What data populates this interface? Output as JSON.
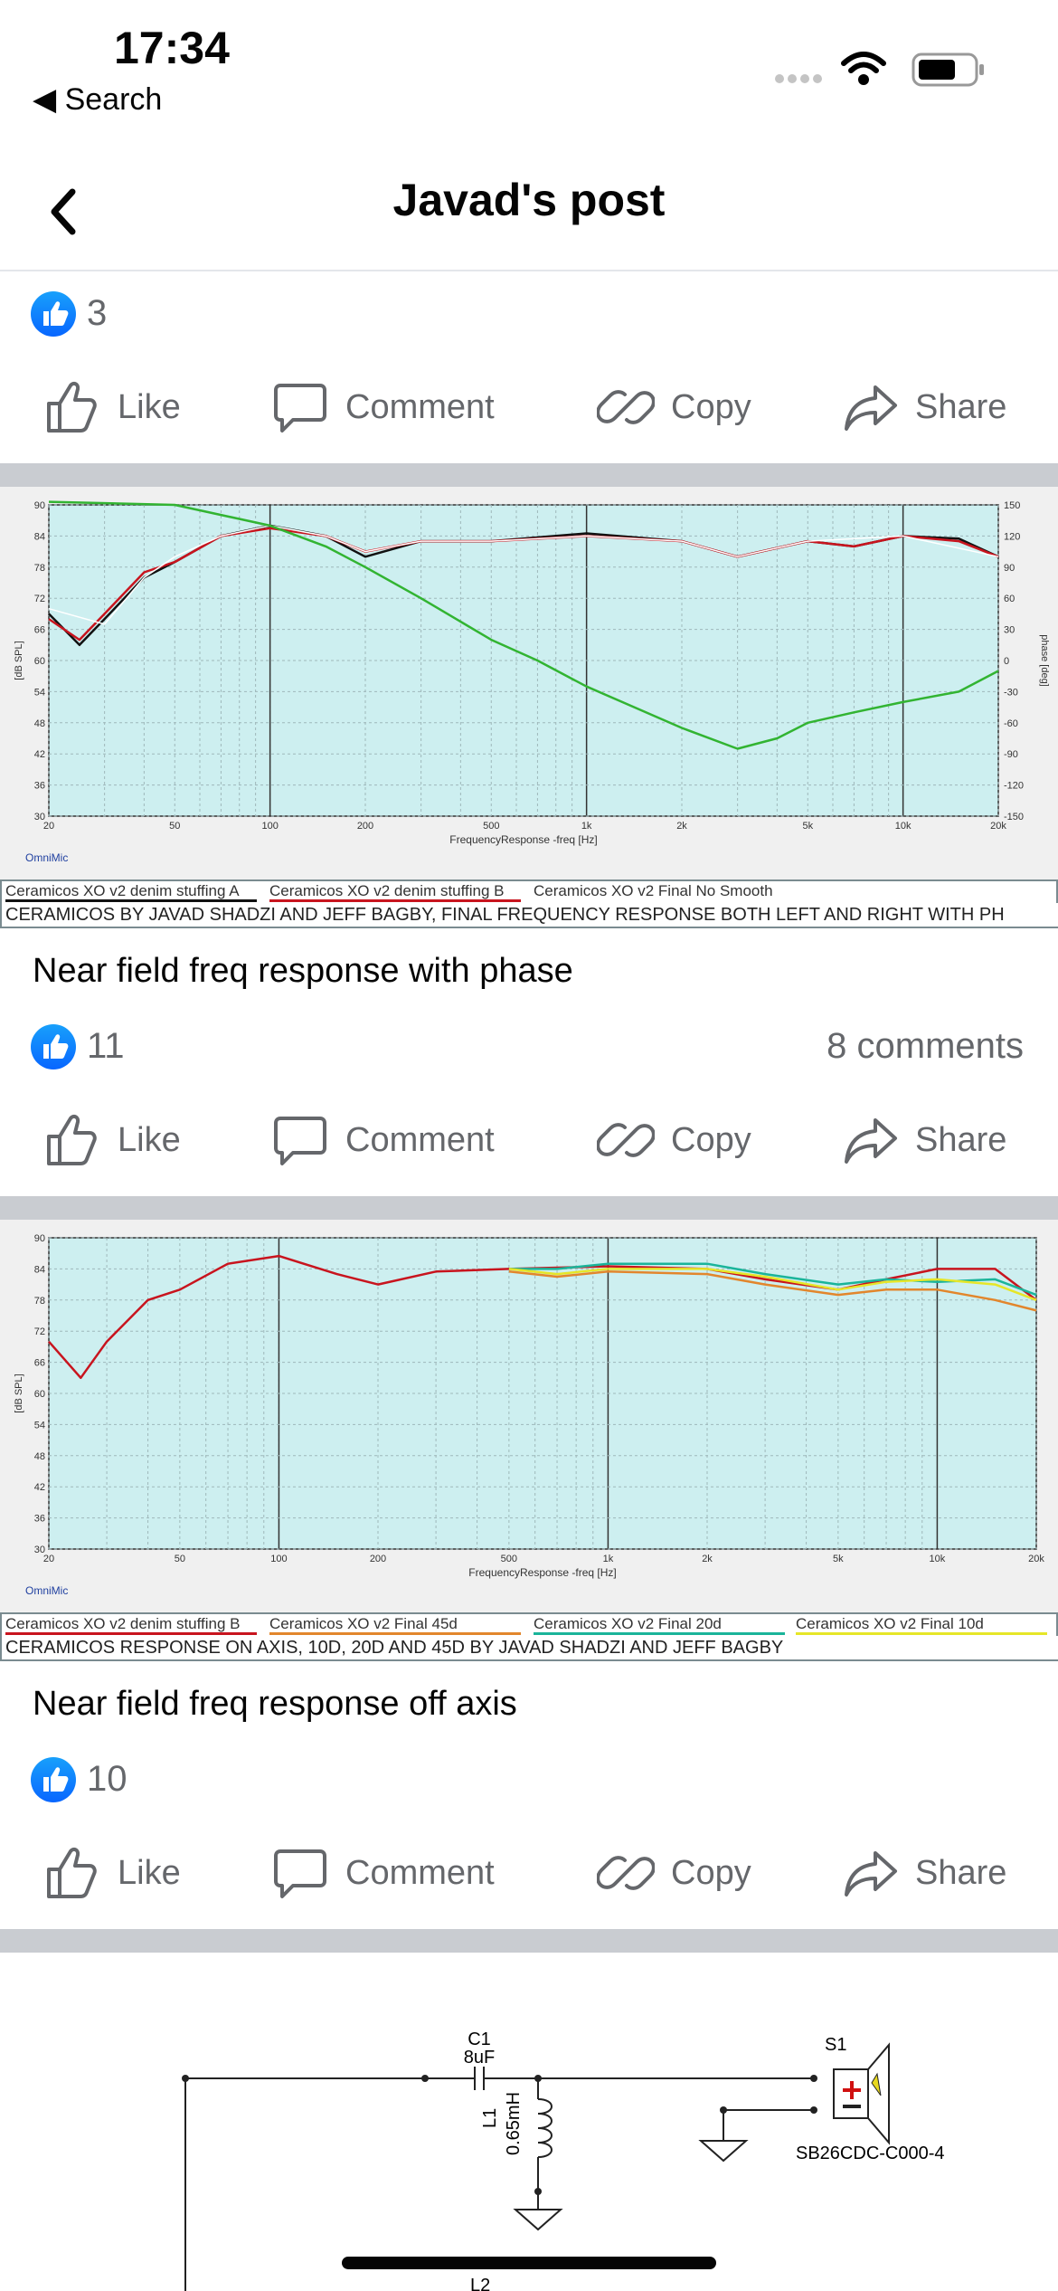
{
  "status": {
    "time": "17:34",
    "back_label": "◀ Search"
  },
  "nav": {
    "title": "Javad's post"
  },
  "actions": {
    "like": "Like",
    "comment": "Comment",
    "copy": "Copy",
    "share": "Share"
  },
  "colors": {
    "accent": "#0866ff",
    "chart_bg": "#cdeff0",
    "green": "#32b432",
    "red": "#c8141e",
    "orange": "#e2862c",
    "teal": "#1ab49a",
    "yellow": "#e6e628"
  },
  "post1": {
    "likes": "3"
  },
  "post2": {
    "caption": "Near field freq response with phase",
    "likes": "11",
    "comments": "8 comments",
    "legend": [
      "Ceramicos XO v2 denim stuffing A",
      "Ceramicos XO v2 denim stuffing B",
      "Ceramicos XO v2 Final No Smooth"
    ],
    "note": "CERAMICOS BY JAVAD SHADZI AND JEFF BAGBY, FINAL FREQUENCY RESPONSE BOTH LEFT AND RIGHT WITH PH"
  },
  "post3": {
    "caption": "Near field freq response off axis",
    "likes": "10",
    "legend": [
      "Ceramicos XO v2 denim stuffing B",
      "Ceramicos XO v2 Final 45d",
      "Ceramicos XO v2 Final 20d",
      "Ceramicos XO v2 Final 10d"
    ],
    "note": "CERAMICOS RESPONSE ON AXIS, 10D, 20D AND 45D BY JAVAD SHADZI AND JEFF BAGBY"
  },
  "schematic": {
    "c1": "C1",
    "c1_val": "8uF",
    "l1": "L1",
    "l1_val": "0.65mH",
    "s1": "S1",
    "s1_part": "SB26CDC-C000-4",
    "l2_partial": "L2"
  },
  "chart_data": [
    {
      "type": "line",
      "xlabel": "FrequencyResponse -freq [Hz]",
      "ylabel": "[dB SPL]",
      "y2label": "phase [deg]",
      "brand": "OmniMic",
      "x_log": true,
      "xlim": [
        20,
        20000
      ],
      "ylim": [
        30,
        90
      ],
      "y2lim": [
        -150,
        150
      ],
      "x_ticks": [
        "20",
        "50",
        "100",
        "200",
        "500",
        "1k",
        "2k",
        "5k",
        "10k",
        "20k"
      ],
      "y_ticks": [
        "30",
        "36",
        "42",
        "48",
        "54",
        "60",
        "66",
        "72",
        "78",
        "84",
        "90"
      ],
      "y2_ticks": [
        "-150",
        "-120",
        "-90",
        "-60",
        "-30",
        "0",
        "30",
        "60",
        "90",
        "120",
        "150"
      ],
      "series": [
        {
          "name": "Ceramicos XO v2 denim stuffing A",
          "color": "#111111",
          "x": [
            20,
            25,
            30,
            40,
            50,
            70,
            100,
            150,
            200,
            300,
            500,
            1000,
            2000,
            3000,
            5000,
            7000,
            10000,
            15000,
            20000
          ],
          "y": [
            69,
            63,
            68,
            76,
            79,
            84,
            86,
            84,
            80,
            83,
            83,
            84.5,
            83,
            80,
            83,
            82,
            84,
            83.5,
            80
          ]
        },
        {
          "name": "Ceramicos XO v2 denim stuffing B",
          "color": "#c8141e",
          "x": [
            20,
            25,
            30,
            40,
            50,
            70,
            100,
            150,
            200,
            300,
            500,
            1000,
            2000,
            3000,
            5000,
            7000,
            10000,
            15000,
            20000
          ],
          "y": [
            68,
            64,
            69,
            77,
            79,
            84,
            85.5,
            84,
            81,
            83,
            83,
            84,
            83,
            80,
            83,
            82,
            84,
            83,
            80
          ]
        },
        {
          "name": "Ceramicos XO v2 Final No Smooth",
          "color": "#ffffff",
          "x": [
            20,
            30,
            40,
            50,
            70,
            100,
            150,
            200,
            300,
            500,
            1000,
            2000,
            3000,
            5000,
            10000,
            20000
          ],
          "y": [
            70,
            67,
            76,
            80,
            84,
            86,
            84,
            81,
            83,
            83,
            84,
            83,
            80,
            83,
            84,
            80
          ]
        },
        {
          "axis": "y2",
          "color": "#32b432",
          "x": [
            20,
            50,
            100,
            150,
            200,
            300,
            500,
            700,
            1000,
            2000,
            3000,
            4000,
            5000,
            7000,
            10000,
            15000,
            20000
          ],
          "y": [
            153,
            150,
            130,
            110,
            90,
            60,
            20,
            0,
            -25,
            -65,
            -85,
            -75,
            -60,
            -50,
            -40,
            -30,
            -10
          ]
        }
      ]
    },
    {
      "type": "line",
      "xlabel": "FrequencyResponse -freq [Hz]",
      "ylabel": "[dB SPL]",
      "brand": "OmniMic",
      "x_log": true,
      "xlim": [
        20,
        20000
      ],
      "ylim": [
        30,
        90
      ],
      "x_ticks": [
        "20",
        "50",
        "100",
        "200",
        "500",
        "1k",
        "2k",
        "5k",
        "10k",
        "20k"
      ],
      "y_ticks": [
        "30",
        "36",
        "42",
        "48",
        "54",
        "60",
        "66",
        "72",
        "78",
        "84",
        "90"
      ],
      "series": [
        {
          "name": "Ceramicos XO v2 denim stuffing B",
          "color": "#c8141e",
          "x": [
            20,
            25,
            30,
            40,
            50,
            70,
            100,
            150,
            200,
            300,
            500,
            1000,
            2000,
            3000,
            5000,
            7000,
            10000,
            15000,
            20000
          ],
          "y": [
            70,
            63,
            70,
            78,
            80,
            85,
            86.5,
            83,
            81,
            83.5,
            84,
            84.5,
            84,
            82,
            80,
            82,
            84,
            84,
            78
          ]
        },
        {
          "name": "Ceramicos XO v2 Final 45d",
          "color": "#e2862c",
          "x": [
            500,
            700,
            1000,
            2000,
            3000,
            5000,
            7000,
            10000,
            15000,
            20000
          ],
          "y": [
            83.5,
            82.5,
            83.5,
            83,
            81,
            79,
            80,
            80,
            78,
            76
          ]
        },
        {
          "name": "Ceramicos XO v2 Final 20d",
          "color": "#1ab49a",
          "x": [
            500,
            700,
            1000,
            2000,
            3000,
            5000,
            7000,
            10000,
            15000,
            20000
          ],
          "y": [
            84,
            84,
            85,
            85,
            83,
            81,
            82,
            81.5,
            82,
            79
          ]
        },
        {
          "name": "Ceramicos XO v2 Final 10d",
          "color": "#e6e628",
          "x": [
            500,
            700,
            1000,
            2000,
            3000,
            5000,
            7000,
            10000,
            15000,
            20000
          ],
          "y": [
            84,
            83,
            84,
            84,
            82.5,
            80,
            81.5,
            82,
            81,
            78
          ]
        }
      ]
    }
  ]
}
